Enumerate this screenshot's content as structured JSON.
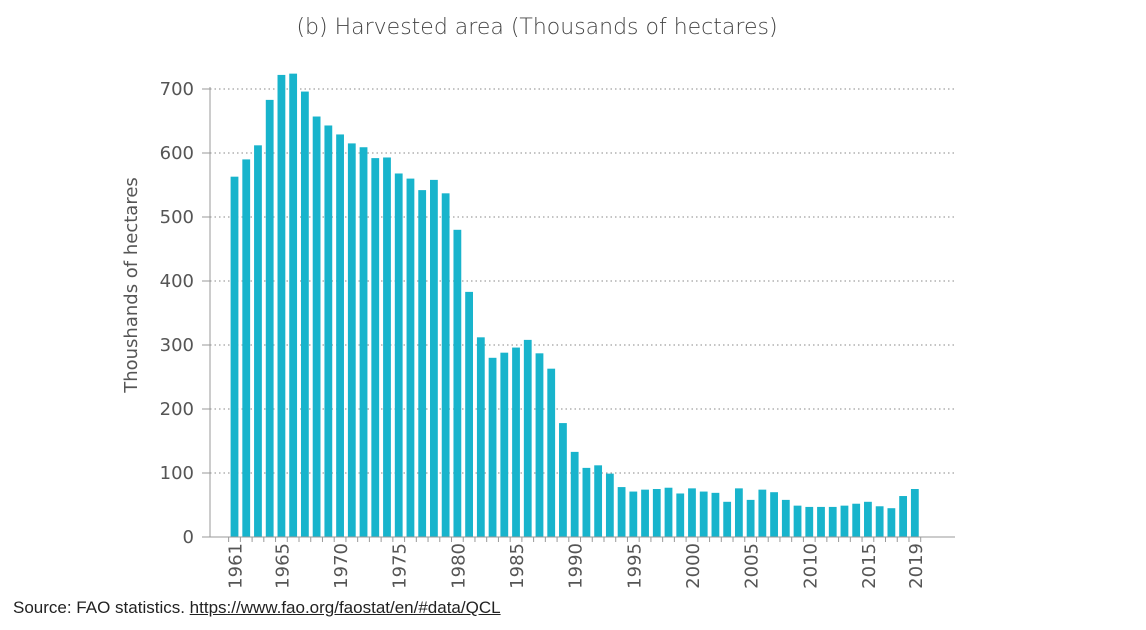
{
  "chart_data": {
    "type": "bar",
    "title": "(b) Harvested area (Thousands of hectares)",
    "xlabel": "",
    "ylabel": "Thoushands of hectares",
    "ylim": [
      0,
      700
    ],
    "yticks": [
      0,
      100,
      200,
      300,
      400,
      500,
      600,
      700
    ],
    "xtick_labels": [
      "1961",
      "1965",
      "1970",
      "1975",
      "1980",
      "1985",
      "1990",
      "1995",
      "2000",
      "2005",
      "2010",
      "2015",
      "2019"
    ],
    "grid": "horizontal-dotted",
    "bar_color": "#18b4cc",
    "categories": [
      "1961",
      "1962",
      "1963",
      "1964",
      "1965",
      "1966",
      "1967",
      "1968",
      "1969",
      "1970",
      "1971",
      "1972",
      "1973",
      "1974",
      "1975",
      "1976",
      "1977",
      "1978",
      "1979",
      "1980",
      "1981",
      "1982",
      "1983",
      "1984",
      "1985",
      "1986",
      "1987",
      "1988",
      "1989",
      "1990",
      "1991",
      "1992",
      "1993",
      "1994",
      "1995",
      "1996",
      "1997",
      "1998",
      "1999",
      "2000",
      "2001",
      "2002",
      "2003",
      "2004",
      "2005",
      "2006",
      "2007",
      "2008",
      "2009",
      "2010",
      "2011",
      "2012",
      "2013",
      "2014",
      "2015",
      "2016",
      "2017",
      "2018",
      "2019"
    ],
    "values": [
      563,
      590,
      612,
      683,
      722,
      724,
      696,
      657,
      643,
      629,
      615,
      609,
      592,
      593,
      568,
      560,
      542,
      558,
      537,
      480,
      383,
      312,
      280,
      288,
      296,
      308,
      287,
      263,
      178,
      133,
      108,
      112,
      99,
      78,
      71,
      74,
      75,
      77,
      68,
      76,
      71,
      69,
      55,
      76,
      58,
      74,
      70,
      58,
      49,
      47,
      47,
      47,
      49,
      52,
      55,
      48,
      45,
      64,
      75
    ]
  },
  "source": {
    "text": "Source: FAO statistics. ",
    "link": "https://www.fao.org/faostat/en/#data/QCL"
  }
}
